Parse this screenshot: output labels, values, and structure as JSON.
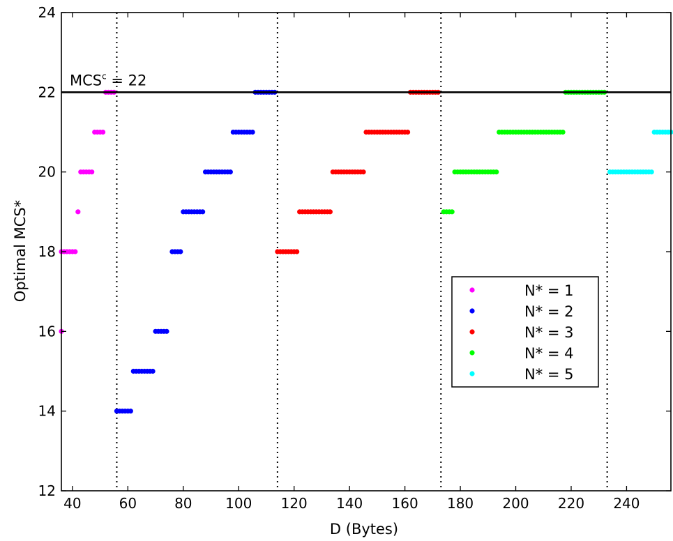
{
  "chart_data": {
    "type": "scatter",
    "xlabel": "D (Bytes)",
    "ylabel": "Optimal MCS*",
    "xlim": [
      36,
      256
    ],
    "ylim": [
      12,
      24
    ],
    "x_ticks": [
      40,
      60,
      80,
      100,
      120,
      140,
      160,
      180,
      200,
      220,
      240
    ],
    "y_ticks": [
      12,
      14,
      16,
      18,
      20,
      22,
      24
    ],
    "grid": false,
    "legend_position": "lower-right",
    "reference_line": {
      "y": 22,
      "label_base": "MCS",
      "label_sup": "c",
      "label_rest": " = 22"
    },
    "vertical_dotted_lines_x": [
      56,
      114,
      173,
      233
    ],
    "series": [
      {
        "name": "N* = 1",
        "color": "#ff00ff",
        "segments": [
          {
            "y": 16,
            "x_start": 36,
            "x_end": 36
          },
          {
            "y": 18,
            "x_start": 36,
            "x_end": 41
          },
          {
            "y": 19,
            "x_start": 42,
            "x_end": 42
          },
          {
            "y": 20,
            "x_start": 43,
            "x_end": 47
          },
          {
            "y": 21,
            "x_start": 48,
            "x_end": 51
          },
          {
            "y": 22,
            "x_start": 52,
            "x_end": 55
          }
        ]
      },
      {
        "name": "N* = 2",
        "color": "#0000ff",
        "segments": [
          {
            "y": 14,
            "x_start": 56,
            "x_end": 61
          },
          {
            "y": 15,
            "x_start": 62,
            "x_end": 69
          },
          {
            "y": 16,
            "x_start": 70,
            "x_end": 74
          },
          {
            "y": 18,
            "x_start": 76,
            "x_end": 79
          },
          {
            "y": 19,
            "x_start": 80,
            "x_end": 87
          },
          {
            "y": 20,
            "x_start": 88,
            "x_end": 97
          },
          {
            "y": 21,
            "x_start": 98,
            "x_end": 105
          },
          {
            "y": 22,
            "x_start": 106,
            "x_end": 113
          }
        ]
      },
      {
        "name": "N* = 3",
        "color": "#ff0000",
        "segments": [
          {
            "y": 18,
            "x_start": 114,
            "x_end": 121
          },
          {
            "y": 19,
            "x_start": 122,
            "x_end": 133
          },
          {
            "y": 20,
            "x_start": 134,
            "x_end": 145
          },
          {
            "y": 21,
            "x_start": 146,
            "x_end": 161
          },
          {
            "y": 22,
            "x_start": 162,
            "x_end": 172
          }
        ]
      },
      {
        "name": "N* = 4",
        "color": "#00ff00",
        "segments": [
          {
            "y": 19,
            "x_start": 174,
            "x_end": 177
          },
          {
            "y": 20,
            "x_start": 178,
            "x_end": 193
          },
          {
            "y": 21,
            "x_start": 194,
            "x_end": 217
          },
          {
            "y": 22,
            "x_start": 218,
            "x_end": 232
          }
        ]
      },
      {
        "name": "N* = 5",
        "color": "#00ffff",
        "segments": [
          {
            "y": 20,
            "x_start": 234,
            "x_end": 249
          },
          {
            "y": 21,
            "x_start": 250,
            "x_end": 256
          }
        ]
      }
    ]
  }
}
